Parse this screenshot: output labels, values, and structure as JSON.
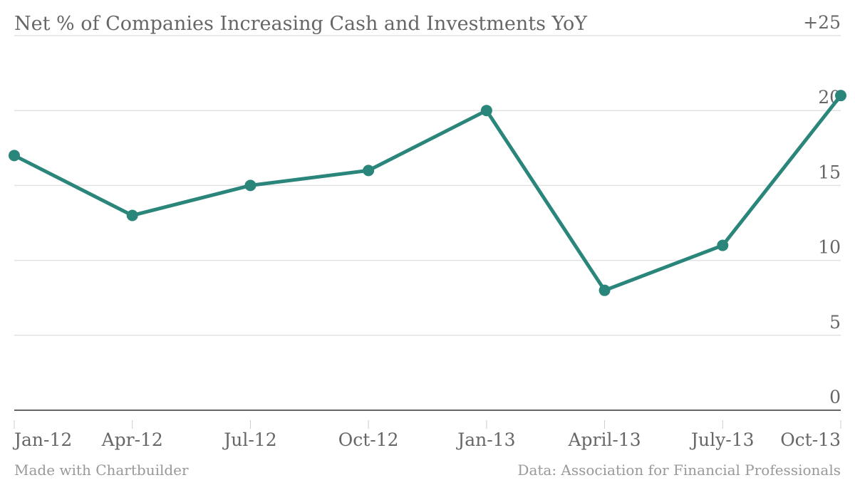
{
  "chart_data": {
    "type": "line",
    "title": "Net % of Companies Increasing Cash and Investments YoY",
    "categories": [
      "Jan-12",
      "Apr-12",
      "Jul-12",
      "Oct-12",
      "Jan-13",
      "April-13",
      "July-13",
      "Oct-13"
    ],
    "series": [
      {
        "values": [
          17,
          13,
          15,
          16,
          20,
          8,
          11,
          21
        ]
      }
    ],
    "ylim": [
      0,
      25
    ],
    "y_ticks": [
      "0",
      "5",
      "10",
      "15",
      "20",
      "+25"
    ],
    "y_tick_values": [
      0,
      5,
      10,
      15,
      20,
      25
    ],
    "y_axis_side": "right",
    "grid": true,
    "line_color": "#2a857a"
  },
  "footer": {
    "left": "Made with Chartbuilder",
    "right": "Data: Association for Financial Professionals"
  }
}
